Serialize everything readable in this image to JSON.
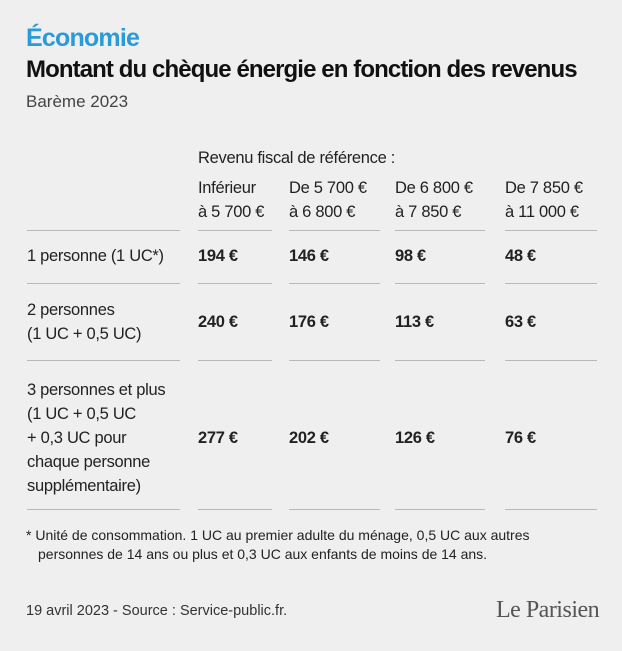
{
  "header": {
    "section": "Économie",
    "title": "Montant du chèque énergie en fonction des revenus",
    "subtitle": "Barème 2023"
  },
  "table": {
    "group_header": "Revenu fiscal de référence :",
    "columns": [
      [
        "Inférieur",
        "à 5 700 €"
      ],
      [
        "De 5 700 €",
        "à 6 800 €"
      ],
      [
        "De 6 800 €",
        "à 7 850 €"
      ],
      [
        "De 7 850 €",
        "à 11 000 €"
      ]
    ],
    "rows": [
      {
        "label": [
          "1 personne (1 UC*)"
        ],
        "values": [
          "194 €",
          "146 €",
          "98 €",
          "48 €"
        ]
      },
      {
        "label": [
          "2 personnes",
          "(1 UC + 0,5 UC)"
        ],
        "values": [
          "240 €",
          "176 €",
          "113 €",
          "63 €"
        ]
      },
      {
        "label": [
          "3 personnes et plus",
          "(1 UC + 0,5 UC",
          "+ 0,3 UC pour",
          "chaque personne",
          "supplémentaire)"
        ],
        "values": [
          "277 €",
          "202 €",
          "126 €",
          "76 €"
        ]
      }
    ]
  },
  "footnote": [
    "* Unité de consommation. 1 UC au premier adulte du ménage, 0,5 UC aux autres",
    "personnes de 14 ans ou plus et 0,3 UC aux enfants de moins de 14 ans."
  ],
  "footer": {
    "source": "19 avril 2023 - Source : Service-public.fr.",
    "logo": "Le Parisien"
  }
}
